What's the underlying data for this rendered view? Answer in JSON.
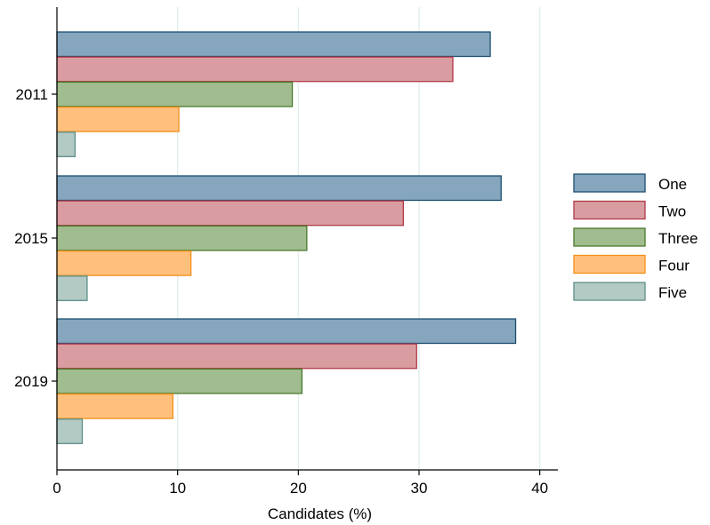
{
  "chart_data": {
    "type": "bar",
    "orientation": "horizontal",
    "categories": [
      "2011",
      "2015",
      "2019"
    ],
    "series": [
      {
        "name": "One",
        "values": [
          35.9,
          36.8,
          38.0
        ],
        "fill": "#86a6bd",
        "stroke": "#1b4f72"
      },
      {
        "name": "Two",
        "values": [
          32.8,
          28.7,
          29.8
        ],
        "fill": "#d99da1",
        "stroke": "#b03a48"
      },
      {
        "name": "Three",
        "values": [
          19.5,
          20.7,
          20.3
        ],
        "fill": "#a1bc8f",
        "stroke": "#4a7a2c"
      },
      {
        "name": "Four",
        "values": [
          10.1,
          11.1,
          9.6
        ],
        "fill": "#ffc07e",
        "stroke": "#f39019"
      },
      {
        "name": "Five",
        "values": [
          1.5,
          2.5,
          2.1
        ],
        "fill": "#b2c9c4",
        "stroke": "#5f8f88"
      }
    ],
    "xlabel": "Candidates (%)",
    "ylabel": "",
    "xlim": [
      0,
      41.5
    ],
    "xticks": [
      "0",
      "10",
      "20",
      "30",
      "40"
    ],
    "grid": "vertical",
    "grid_color": "#e3efeb",
    "legend_position": "right"
  }
}
